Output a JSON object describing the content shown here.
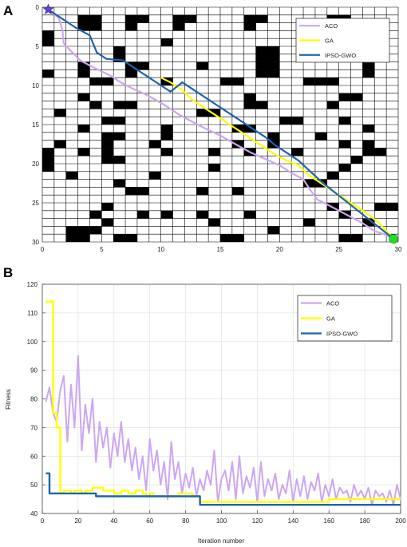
{
  "chart_data": [
    {
      "type": "line",
      "panel_label": "A",
      "xlim": [
        0,
        30
      ],
      "ylim": [
        0,
        30
      ],
      "y_axis_direction": "down",
      "xticks": [
        0,
        5,
        10,
        15,
        20,
        25,
        30
      ],
      "yticks": [
        0,
        5,
        10,
        15,
        20,
        25,
        30
      ],
      "grid": true,
      "obstacles": [
        [
          3,
          1
        ],
        [
          4,
          1
        ],
        [
          7,
          1
        ],
        [
          8,
          1
        ],
        [
          11,
          1
        ],
        [
          12,
          1
        ],
        [
          17,
          1
        ],
        [
          18,
          1
        ],
        [
          24,
          1
        ],
        [
          25,
          1
        ],
        [
          3,
          2
        ],
        [
          4,
          2
        ],
        [
          7,
          2
        ],
        [
          11,
          2
        ],
        [
          17,
          2
        ],
        [
          24,
          2
        ],
        [
          0,
          3
        ],
        [
          22,
          3
        ],
        [
          23,
          3
        ],
        [
          0,
          4
        ],
        [
          10,
          4
        ],
        [
          22,
          4
        ],
        [
          6,
          5
        ],
        [
          18,
          5
        ],
        [
          19,
          5
        ],
        [
          26,
          5
        ],
        [
          27,
          5
        ],
        [
          6,
          6
        ],
        [
          18,
          6
        ],
        [
          19,
          6
        ],
        [
          26,
          6
        ],
        [
          27,
          6
        ],
        [
          3,
          7
        ],
        [
          7,
          7
        ],
        [
          8,
          7
        ],
        [
          13,
          7
        ],
        [
          18,
          7
        ],
        [
          19,
          7
        ],
        [
          27,
          7
        ],
        [
          0,
          8
        ],
        [
          3,
          8
        ],
        [
          7,
          8
        ],
        [
          18,
          8
        ],
        [
          19,
          8
        ],
        [
          27,
          8
        ],
        [
          4,
          9
        ],
        [
          5,
          9
        ],
        [
          10,
          9
        ],
        [
          15,
          9
        ],
        [
          16,
          9
        ],
        [
          22,
          9
        ],
        [
          23,
          9
        ],
        [
          24,
          9
        ],
        [
          3,
          11
        ],
        [
          17,
          11
        ],
        [
          25,
          11
        ],
        [
          26,
          11
        ],
        [
          4,
          12
        ],
        [
          6,
          12
        ],
        [
          7,
          12
        ],
        [
          17,
          12
        ],
        [
          18,
          12
        ],
        [
          24,
          12
        ],
        [
          1,
          13
        ],
        [
          13,
          13
        ],
        [
          14,
          13
        ],
        [
          5,
          14
        ],
        [
          6,
          14
        ],
        [
          20,
          14
        ],
        [
          21,
          14
        ],
        [
          25,
          14
        ],
        [
          3,
          15
        ],
        [
          10,
          15
        ],
        [
          16,
          15
        ],
        [
          17,
          15
        ],
        [
          27,
          15
        ],
        [
          5,
          16
        ],
        [
          6,
          16
        ],
        [
          10,
          16
        ],
        [
          19,
          16
        ],
        [
          23,
          16
        ],
        [
          1,
          17
        ],
        [
          5,
          17
        ],
        [
          9,
          17
        ],
        [
          16,
          17
        ],
        [
          19,
          17
        ],
        [
          25,
          17
        ],
        [
          27,
          17
        ],
        [
          0,
          18
        ],
        [
          3,
          18
        ],
        [
          5,
          18
        ],
        [
          10,
          18
        ],
        [
          14,
          18
        ],
        [
          17,
          18
        ],
        [
          21,
          18
        ],
        [
          27,
          18
        ],
        [
          28,
          18
        ],
        [
          0,
          19
        ],
        [
          5,
          19
        ],
        [
          6,
          19
        ],
        [
          26,
          19
        ],
        [
          0,
          20
        ],
        [
          14,
          20
        ],
        [
          25,
          20
        ],
        [
          2,
          21
        ],
        [
          9,
          21
        ],
        [
          24,
          21
        ],
        [
          6,
          22
        ],
        [
          22,
          22
        ],
        [
          23,
          22
        ],
        [
          7,
          23
        ],
        [
          8,
          23
        ],
        [
          13,
          23
        ],
        [
          16,
          23
        ],
        [
          5,
          25
        ],
        [
          24,
          25
        ],
        [
          28,
          25
        ],
        [
          29,
          25
        ],
        [
          4,
          26
        ],
        [
          8,
          26
        ],
        [
          10,
          26
        ],
        [
          13,
          26
        ],
        [
          17,
          26
        ],
        [
          25,
          26
        ],
        [
          5,
          27
        ],
        [
          14,
          27
        ],
        [
          22,
          27
        ],
        [
          27,
          27
        ],
        [
          2,
          28
        ],
        [
          3,
          28
        ],
        [
          4,
          28
        ],
        [
          19,
          28
        ],
        [
          2,
          29
        ],
        [
          3,
          29
        ],
        [
          6,
          29
        ],
        [
          7,
          29
        ],
        [
          15,
          29
        ],
        [
          16,
          29
        ],
        [
          25,
          29
        ],
        [
          26,
          29
        ]
      ],
      "start": [
        0.5,
        0.3
      ],
      "goal": [
        29.6,
        29.6
      ],
      "series": [
        {
          "name": "ACO",
          "color": "#cda6f0",
          "x": [
            0.5,
            1.4,
            1.7,
            1.8,
            2.4,
            3.2,
            4.2,
            5.8,
            6.6,
            7.6,
            8.8,
            10.2,
            11.6,
            12.6,
            13.6,
            15.0,
            16.4,
            17.6,
            18.8,
            20.0,
            20.8,
            22.0,
            22.6,
            23.2,
            24.0,
            25.0,
            26.0,
            27.0,
            28.0,
            28.8,
            29.6
          ],
          "y": [
            0.3,
            1.4,
            3.0,
            4.6,
            5.6,
            6.8,
            7.6,
            8.8,
            9.6,
            10.4,
            11.2,
            12.4,
            13.8,
            14.6,
            15.4,
            16.4,
            17.6,
            18.6,
            19.4,
            20.2,
            21.0,
            22.0,
            23.4,
            24.6,
            25.2,
            26.0,
            26.8,
            27.6,
            28.6,
            29.0,
            29.6
          ]
        },
        {
          "name": "GA",
          "color": "#ffff00",
          "x": [
            10.0,
            10.8,
            11.8,
            12.6,
            13.6,
            14.6,
            15.6,
            16.6,
            17.6,
            18.6,
            19.6,
            20.6,
            21.6,
            22.4,
            23.4,
            24.4,
            25.4,
            26.4,
            27.4,
            28.4,
            29.6
          ],
          "y": [
            9.0,
            9.6,
            10.6,
            11.8,
            12.8,
            13.8,
            14.8,
            15.8,
            16.8,
            17.8,
            18.8,
            19.6,
            20.2,
            21.4,
            22.4,
            23.4,
            24.4,
            25.4,
            26.4,
            27.6,
            29.6
          ]
        },
        {
          "name": "IPSO-GWO",
          "color": "#1f63ad",
          "x": [
            0.5,
            1.6,
            2.8,
            4.0,
            4.6,
            5.4,
            6.8,
            7.8,
            8.8,
            9.8,
            10.8,
            11.8,
            12.8,
            13.8,
            14.8,
            15.8,
            16.8,
            17.8,
            18.8,
            19.6,
            20.6,
            21.6,
            22.6,
            23.6,
            24.6,
            25.6,
            26.6,
            27.6,
            28.6,
            29.6
          ],
          "y": [
            0.3,
            1.4,
            2.6,
            3.6,
            5.8,
            6.6,
            6.8,
            7.8,
            8.8,
            9.8,
            10.8,
            9.6,
            10.6,
            11.6,
            12.6,
            13.6,
            14.6,
            15.6,
            16.6,
            17.6,
            18.6,
            19.6,
            21.0,
            22.4,
            23.6,
            24.8,
            26.0,
            27.2,
            28.4,
            29.6
          ]
        }
      ],
      "legend": "top-right"
    },
    {
      "type": "line",
      "panel_label": "B",
      "xlabel": "Iteration number",
      "ylabel": "Fitness",
      "xlim": [
        0,
        200
      ],
      "ylim": [
        40,
        120
      ],
      "xticks": [
        0,
        20,
        40,
        60,
        80,
        100,
        120,
        140,
        160,
        180,
        200
      ],
      "yticks": [
        40,
        50,
        60,
        70,
        80,
        90,
        100,
        110,
        120
      ],
      "grid": true,
      "series": [
        {
          "name": "ACO",
          "color": "#cda6f0",
          "x": [
            2,
            4,
            6,
            8,
            10,
            12,
            14,
            16,
            18,
            20,
            22,
            24,
            26,
            28,
            30,
            32,
            34,
            36,
            38,
            40,
            42,
            44,
            46,
            48,
            50,
            52,
            54,
            56,
            58,
            60,
            62,
            64,
            66,
            68,
            70,
            72,
            74,
            76,
            78,
            80,
            82,
            84,
            86,
            88,
            90,
            92,
            94,
            96,
            98,
            100,
            102,
            104,
            106,
            108,
            110,
            112,
            114,
            116,
            118,
            120,
            122,
            124,
            126,
            128,
            130,
            132,
            134,
            136,
            138,
            140,
            142,
            144,
            146,
            148,
            150,
            152,
            154,
            156,
            158,
            160,
            162,
            164,
            166,
            168,
            170,
            172,
            174,
            176,
            178,
            180,
            182,
            184,
            186,
            188,
            190,
            192,
            194,
            196,
            198,
            200
          ],
          "y": [
            79,
            84,
            75,
            72,
            83,
            88,
            65,
            85,
            70,
            95,
            62,
            78,
            68,
            80,
            58,
            72,
            63,
            70,
            56,
            68,
            60,
            72,
            58,
            66,
            55,
            63,
            52,
            60,
            48,
            66,
            55,
            62,
            50,
            58,
            45,
            65,
            52,
            58,
            47,
            54,
            49,
            56,
            46,
            52,
            48,
            55,
            50,
            62,
            44,
            52,
            55,
            48,
            58,
            45,
            60,
            47,
            53,
            49,
            56,
            44,
            58,
            46,
            52,
            48,
            54,
            45,
            50,
            47,
            55,
            44,
            52,
            46,
            53,
            45,
            51,
            48,
            54,
            44,
            50,
            46,
            52,
            45,
            49,
            47,
            48,
            44,
            50,
            46,
            48,
            45,
            49,
            43,
            48,
            46,
            47,
            44,
            48,
            43,
            50,
            45
          ]
        },
        {
          "name": "GA",
          "color": "#ffff00",
          "x": [
            2,
            4,
            6,
            8,
            10,
            12,
            14,
            16,
            18,
            20,
            22,
            24,
            26,
            28,
            30,
            34,
            38,
            40,
            44,
            48,
            52,
            56,
            58,
            60,
            62,
            66,
            70,
            74,
            76,
            80,
            84,
            86,
            88,
            92,
            96,
            100,
            104,
            108,
            112,
            116,
            120,
            124,
            128,
            132,
            136,
            140,
            144,
            148,
            152,
            156,
            160,
            164,
            168,
            172,
            176,
            180,
            184,
            188,
            192,
            196,
            200
          ],
          "y": [
            114,
            114,
            75,
            70,
            47,
            48,
            48,
            47,
            48,
            48,
            47,
            48,
            48,
            49,
            49,
            48,
            48,
            47,
            48,
            47,
            48,
            47,
            46,
            47,
            46,
            46,
            46,
            46,
            47,
            47,
            46,
            46,
            44,
            44,
            44,
            44,
            44,
            44,
            44,
            44,
            44,
            44,
            44,
            44,
            44,
            44,
            44,
            44,
            44,
            44,
            45,
            45,
            45,
            45,
            45,
            45,
            45,
            45,
            45,
            45,
            45
          ]
        },
        {
          "name": "IPSO-GWO",
          "color": "#1f63ad",
          "x": [
            2,
            4,
            6,
            12,
            20,
            28,
            30,
            40,
            50,
            60,
            70,
            80,
            86,
            88,
            100,
            120,
            140,
            160,
            180,
            200
          ],
          "y": [
            54,
            47,
            47,
            47,
            47,
            47,
            46,
            46,
            46,
            46,
            46,
            46,
            46,
            43,
            43,
            43,
            43,
            43,
            43,
            43
          ]
        }
      ],
      "legend": "top-right"
    }
  ]
}
